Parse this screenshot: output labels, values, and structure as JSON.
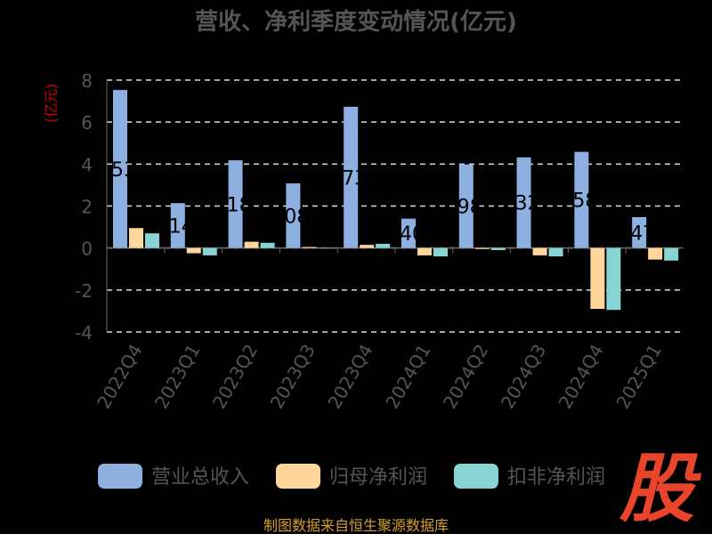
{
  "chart_data": {
    "type": "bar",
    "title": "营收、净利季度变动情况(亿元)",
    "ylabel": "(亿元)",
    "xlabel": "",
    "ylim": [
      -4,
      8
    ],
    "yticks": [
      8,
      6,
      4,
      2,
      0,
      -2,
      -4
    ],
    "grid": true,
    "legend_position": "bottom",
    "categories": [
      "2022Q4",
      "2023Q1",
      "2023Q2",
      "2023Q3",
      "2023Q4",
      "2024Q1",
      "2024Q2",
      "2024Q3",
      "2024Q4",
      "2025Q1"
    ],
    "series": [
      {
        "name": "营业总收入",
        "color": "#8eb0e0",
        "values": [
          7.53,
          2.14,
          4.18,
          3.08,
          6.73,
          1.4,
          3.98,
          4.32,
          4.58,
          1.47
        ]
      },
      {
        "name": "归母净利润",
        "color": "#ffd79a",
        "values": [
          0.95,
          -0.25,
          0.3,
          0.05,
          0.15,
          -0.35,
          -0.05,
          -0.35,
          -2.9,
          -0.55
        ]
      },
      {
        "name": "扣非净利润",
        "color": "#86d4d4",
        "values": [
          0.7,
          -0.35,
          0.25,
          0.0,
          0.2,
          -0.4,
          -0.1,
          -0.4,
          -2.95,
          -0.6
        ]
      }
    ],
    "visible_data_labels": [
      "53",
      "14",
      "18",
      "08",
      "73",
      "40",
      "98",
      "32",
      "58",
      "47"
    ]
  },
  "footer": {
    "source": "制图数据来自恒生聚源数据库"
  },
  "logo": {
    "text": "股",
    "color": "#e8452c"
  },
  "colors": {
    "background": "#000000",
    "axis": "#666666",
    "grid": "#dddddd",
    "text": "#555555",
    "ylabel": "#cc0000",
    "source": "#d4a030"
  }
}
